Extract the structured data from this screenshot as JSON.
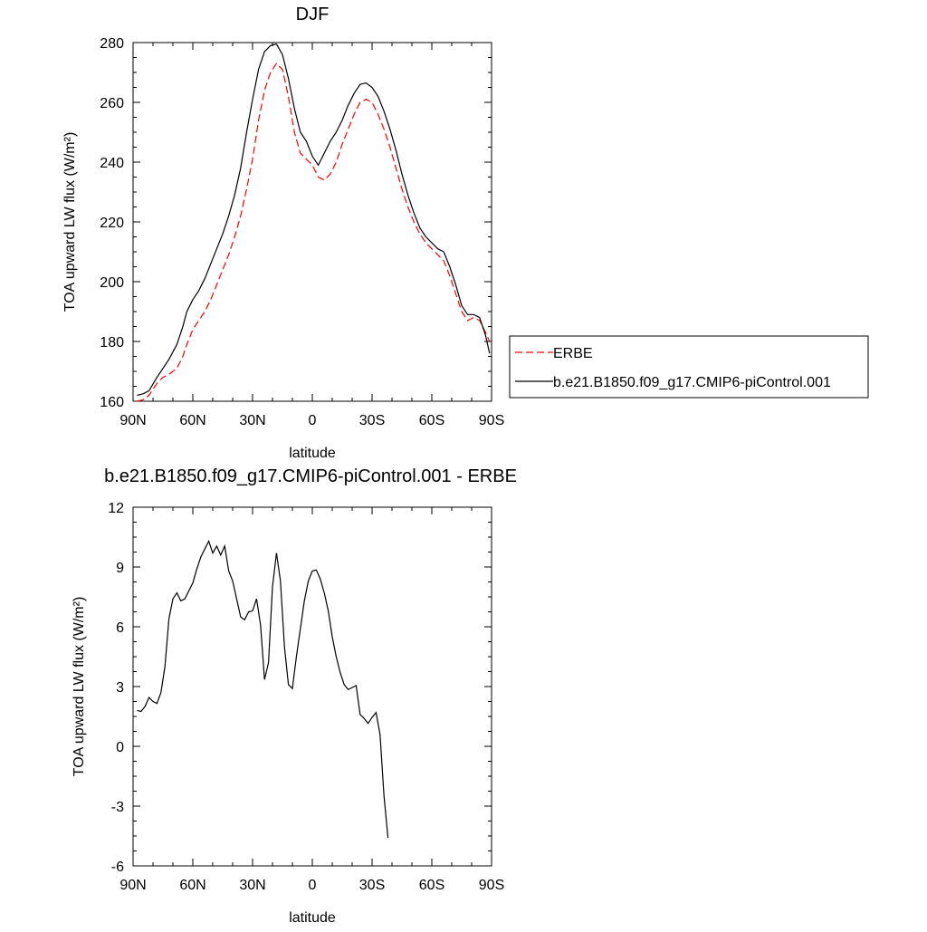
{
  "chart_data": [
    {
      "type": "line",
      "title": "DJF",
      "xlabel": "latitude",
      "ylabel": "TOA upward LW flux (W/m²)",
      "xlim": [
        -90,
        90
      ],
      "ylim": [
        160,
        280
      ],
      "x_ticks": [
        -90,
        -60,
        -30,
        0,
        30,
        60,
        90
      ],
      "x_tick_labels": [
        "90N",
        "60N",
        "30N",
        "0",
        "30S",
        "60S",
        "90S"
      ],
      "y_ticks": [
        160,
        180,
        200,
        220,
        240,
        260,
        280
      ],
      "y_tick_labels": [
        "160",
        "180",
        "200",
        "220",
        "240",
        "260",
        "280"
      ],
      "legend_placement": "right",
      "series": [
        {
          "name": "ERBE",
          "color": "#ff0000",
          "dash": "dashed",
          "points": [
            [
              -88,
              160
            ],
            [
              -85,
              160.5
            ],
            [
              -82,
              162
            ],
            [
              -78,
              166
            ],
            [
              -75,
              168
            ],
            [
              -72,
              169
            ],
            [
              -68,
              171
            ],
            [
              -65,
              175
            ],
            [
              -63,
              179
            ],
            [
              -60,
              184
            ],
            [
              -57,
              187
            ],
            [
              -54,
              190
            ],
            [
              -51,
              194
            ],
            [
              -48,
              199
            ],
            [
              -45,
              204
            ],
            [
              -42,
              209
            ],
            [
              -39,
              215
            ],
            [
              -36,
              222
            ],
            [
              -33,
              231
            ],
            [
              -30,
              241
            ],
            [
              -27,
              254
            ],
            [
              -24,
              264
            ],
            [
              -21,
              270
            ],
            [
              -18,
              273
            ],
            [
              -15,
              271
            ],
            [
              -12,
              262
            ],
            [
              -9,
              250
            ],
            [
              -6,
              243
            ],
            [
              -3,
              241
            ],
            [
              0,
              239
            ],
            [
              3,
              235
            ],
            [
              6,
              234
            ],
            [
              9,
              236
            ],
            [
              12,
              240
            ],
            [
              15,
              246
            ],
            [
              18,
              251
            ],
            [
              21,
              256
            ],
            [
              24,
              260
            ],
            [
              27,
              261
            ],
            [
              30,
              260
            ],
            [
              33,
              256
            ],
            [
              36,
              251
            ],
            [
              39,
              245
            ],
            [
              42,
              238
            ],
            [
              45,
              231
            ],
            [
              48,
              225
            ],
            [
              51,
              220
            ],
            [
              54,
              216
            ],
            [
              57,
              213
            ],
            [
              60,
              211
            ],
            [
              63,
              209
            ],
            [
              66,
              207
            ],
            [
              69,
              202
            ],
            [
              72,
              196
            ],
            [
              75,
              190
            ],
            [
              78,
              187
            ],
            [
              81,
              188
            ],
            [
              84,
              187
            ],
            [
              87,
              183
            ],
            [
              89,
              180
            ]
          ]
        },
        {
          "name": "b.e21.B1850.f09_g17.CMIP6-piControl.001",
          "color": "#000000",
          "dash": "solid",
          "points": [
            [
              -88,
              162
            ],
            [
              -85,
              162.5
            ],
            [
              -82,
              163.5
            ],
            [
              -78,
              168
            ],
            [
              -75,
              171
            ],
            [
              -72,
              174
            ],
            [
              -68,
              179
            ],
            [
              -65,
              185
            ],
            [
              -63,
              190
            ],
            [
              -60,
              194
            ],
            [
              -57,
              197
            ],
            [
              -54,
              201
            ],
            [
              -51,
              206
            ],
            [
              -48,
              211
            ],
            [
              -45,
              216
            ],
            [
              -42,
              222
            ],
            [
              -39,
              229
            ],
            [
              -36,
              238
            ],
            [
              -33,
              250
            ],
            [
              -30,
              261
            ],
            [
              -27,
              271
            ],
            [
              -24,
              277
            ],
            [
              -21,
              279
            ],
            [
              -18,
              279.5
            ],
            [
              -15,
              276
            ],
            [
              -12,
              268
            ],
            [
              -9,
              258
            ],
            [
              -6,
              250
            ],
            [
              -3,
              247
            ],
            [
              0,
              242
            ],
            [
              3,
              239
            ],
            [
              6,
              243
            ],
            [
              9,
              247
            ],
            [
              12,
              250
            ],
            [
              15,
              254
            ],
            [
              18,
              259
            ],
            [
              21,
              263
            ],
            [
              24,
              266
            ],
            [
              27,
              266.5
            ],
            [
              30,
              265
            ],
            [
              33,
              262
            ],
            [
              36,
              257
            ],
            [
              39,
              251
            ],
            [
              42,
              244
            ],
            [
              45,
              236
            ],
            [
              48,
              229
            ],
            [
              51,
              223
            ],
            [
              54,
              218
            ],
            [
              57,
              215
            ],
            [
              60,
              213
            ],
            [
              63,
              211
            ],
            [
              66,
              210
            ],
            [
              69,
              205
            ],
            [
              72,
              199
            ],
            [
              75,
              192
            ],
            [
              78,
              189
            ],
            [
              81,
              189
            ],
            [
              84,
              188
            ],
            [
              87,
              182
            ],
            [
              89,
              176
            ]
          ]
        }
      ]
    },
    {
      "type": "line",
      "title": "b.e21.B1850.f09_g17.CMIP6-piControl.001 - ERBE",
      "xlabel": "latitude",
      "ylabel": "TOA upward LW flux (W/m²)",
      "xlim": [
        -90,
        90
      ],
      "ylim": [
        -6,
        12
      ],
      "x_ticks": [
        -90,
        -60,
        -30,
        0,
        30,
        60,
        90
      ],
      "x_tick_labels": [
        "90N",
        "60N",
        "30N",
        "0",
        "30S",
        "60S",
        "90S"
      ],
      "y_ticks": [
        -6,
        -3,
        0,
        3,
        6,
        9,
        12
      ],
      "y_tick_labels": [
        "-6",
        "-3",
        "0",
        "3",
        "6",
        "9",
        "12"
      ],
      "series": [
        {
          "color": "#000000",
          "dash": "solid",
          "points": [
            [
              -88,
              1.8
            ],
            [
              -86,
              1.75
            ],
            [
              -84,
              2.0
            ],
            [
              -82,
              2.45
            ],
            [
              -80,
              2.25
            ],
            [
              -78,
              2.15
            ],
            [
              -76,
              2.7
            ],
            [
              -74,
              4.0
            ],
            [
              -72,
              6.4
            ],
            [
              -70,
              7.4
            ],
            [
              -68,
              7.7
            ],
            [
              -66,
              7.3
            ],
            [
              -64,
              7.4
            ],
            [
              -62,
              7.8
            ],
            [
              -60,
              8.2
            ],
            [
              -58,
              8.9
            ],
            [
              -56,
              9.5
            ],
            [
              -54,
              9.9
            ],
            [
              -52,
              10.3
            ],
            [
              -50,
              9.7
            ],
            [
              -48,
              10.05
            ],
            [
              -46,
              9.6
            ],
            [
              -44,
              10.05
            ],
            [
              -42,
              8.8
            ],
            [
              -40,
              8.3
            ],
            [
              -38,
              7.4
            ],
            [
              -36,
              6.5
            ],
            [
              -34,
              6.35
            ],
            [
              -32,
              6.75
            ],
            [
              -30,
              6.8
            ],
            [
              -28,
              7.4
            ],
            [
              -26,
              6.1
            ],
            [
              -24,
              3.35
            ],
            [
              -22,
              4.2
            ],
            [
              -20,
              8.0
            ],
            [
              -18,
              9.7
            ],
            [
              -16,
              8.3
            ],
            [
              -14,
              5.0
            ],
            [
              -12,
              3.1
            ],
            [
              -10,
              2.9
            ],
            [
              -8,
              4.5
            ],
            [
              -6,
              5.9
            ],
            [
              -4,
              7.3
            ],
            [
              -2,
              8.3
            ],
            [
              0,
              8.8
            ],
            [
              2,
              8.85
            ],
            [
              4,
              8.4
            ],
            [
              6,
              7.7
            ],
            [
              8,
              6.8
            ],
            [
              10,
              5.5
            ],
            [
              12,
              4.5
            ],
            [
              14,
              3.7
            ],
            [
              16,
              3.1
            ],
            [
              18,
              2.85
            ],
            [
              20,
              2.95
            ],
            [
              22,
              3.05
            ],
            [
              24,
              1.6
            ],
            [
              26,
              1.4
            ],
            [
              28,
              1.15
            ],
            [
              30,
              1.45
            ],
            [
              32,
              1.7
            ],
            [
              34,
              0.6
            ],
            [
              36,
              -2.5
            ],
            [
              38,
              -4.6
            ]
          ]
        }
      ]
    }
  ]
}
